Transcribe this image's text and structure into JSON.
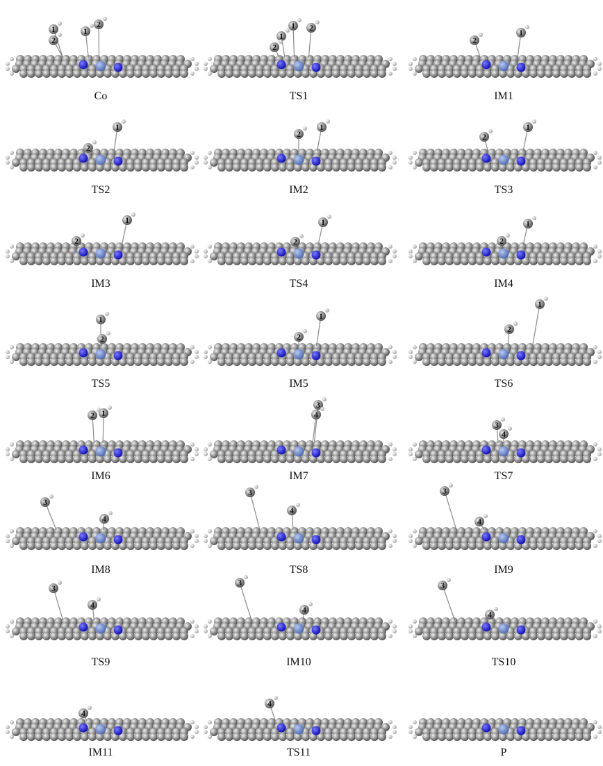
{
  "panels": [
    {
      "label": "Co",
      "atom_labels": [
        "1",
        "2",
        "1",
        "2"
      ]
    },
    {
      "label": "TS1",
      "atom_labels": [
        "1",
        "2",
        "1",
        "2"
      ]
    },
    {
      "label": "IM1",
      "atom_labels": [
        "2",
        "1"
      ]
    },
    {
      "label": "TS2",
      "atom_labels": [
        "2",
        "1"
      ]
    },
    {
      "label": "IM2",
      "atom_labels": [
        "2",
        "1"
      ]
    },
    {
      "label": "TS3",
      "atom_labels": [
        "2",
        "1"
      ]
    },
    {
      "label": "IM3",
      "atom_labels": [
        "2",
        "1"
      ]
    },
    {
      "label": "TS4",
      "atom_labels": [
        "2",
        "1"
      ]
    },
    {
      "label": "IM4",
      "atom_labels": [
        "2",
        "1"
      ]
    },
    {
      "label": "TS5",
      "atom_labels": [
        "1",
        "2"
      ]
    },
    {
      "label": "IM5",
      "atom_labels": [
        "2",
        "1"
      ]
    },
    {
      "label": "TS6",
      "atom_labels": [
        "1",
        "2"
      ]
    },
    {
      "label": "IM6",
      "atom_labels": [
        "2",
        "1"
      ]
    },
    {
      "label": "IM7",
      "atom_labels": [
        "3",
        "4"
      ]
    },
    {
      "label": "TS7",
      "atom_labels": [
        "3",
        "4"
      ]
    },
    {
      "label": "IM8",
      "atom_labels": [
        "3",
        "4"
      ]
    },
    {
      "label": "TS8",
      "atom_labels": [
        "3",
        "4"
      ]
    },
    {
      "label": "IM9",
      "atom_labels": [
        "3",
        "4"
      ]
    },
    {
      "label": "TS9",
      "atom_labels": [
        "3",
        "4"
      ]
    },
    {
      "label": "IM10",
      "atom_labels": [
        "3",
        "4"
      ]
    },
    {
      "label": "TS10",
      "atom_labels": [
        "3",
        "4"
      ]
    },
    {
      "label": "IM11",
      "atom_labels": [
        "4"
      ]
    },
    {
      "label": "TS11",
      "atom_labels": [
        "4"
      ]
    },
    {
      "label": "P"
    }
  ]
}
